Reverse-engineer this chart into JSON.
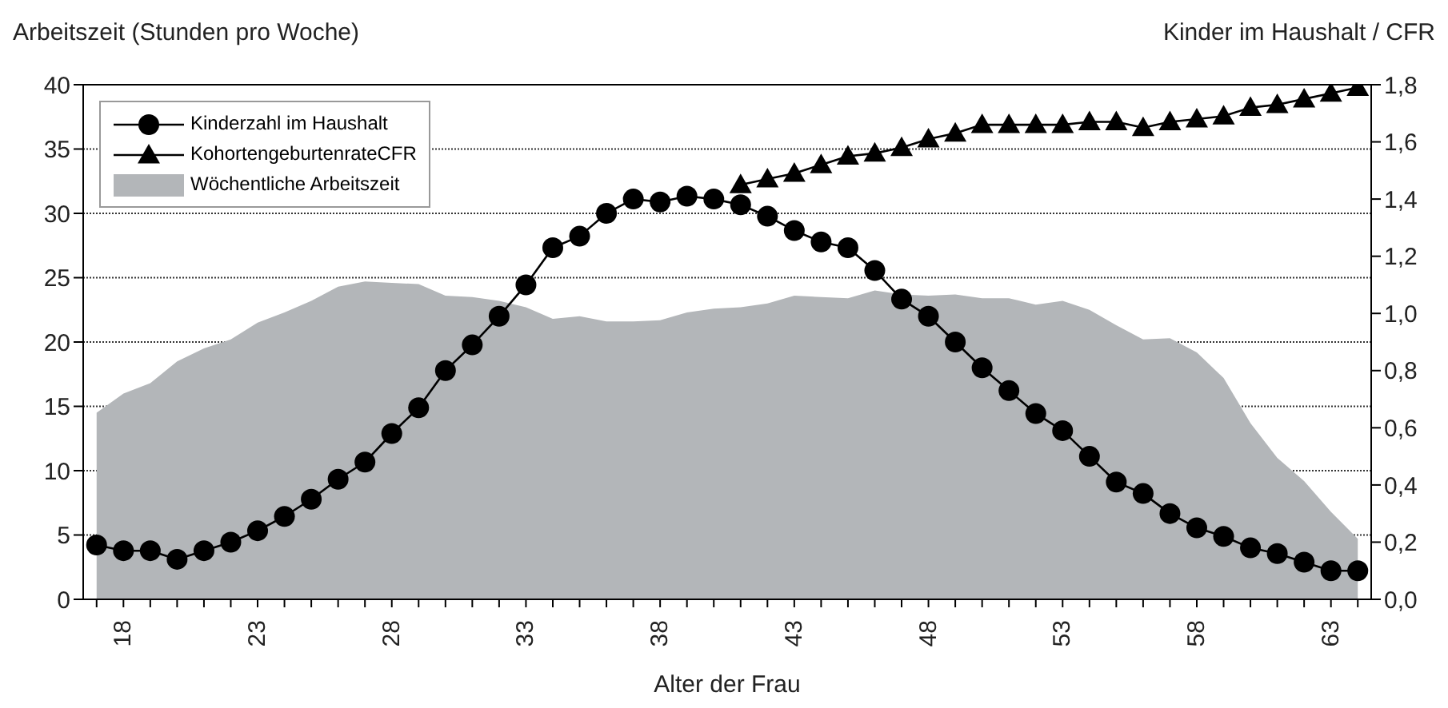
{
  "chart_data": {
    "type": "line",
    "xlabel": "Alter der Frau",
    "ylabel": "Arbeitszeit (Stunden pro Woche)",
    "y2label": "Kinder im Haushalt / CFR",
    "x": [
      17,
      18,
      19,
      20,
      21,
      22,
      23,
      24,
      25,
      26,
      27,
      28,
      29,
      30,
      31,
      32,
      33,
      34,
      35,
      36,
      37,
      38,
      39,
      40,
      41,
      42,
      43,
      44,
      45,
      46,
      47,
      48,
      49,
      50,
      51,
      52,
      53,
      54,
      55,
      56,
      57,
      58,
      59,
      60,
      61,
      62,
      63,
      64
    ],
    "series": [
      {
        "name": "Kinderzahl im Haushalt",
        "axis": "y2",
        "marker": "circle",
        "color": "#000000",
        "values": [
          0.19,
          0.17,
          0.17,
          0.14,
          0.17,
          0.2,
          0.24,
          0.29,
          0.35,
          0.42,
          0.48,
          0.58,
          0.67,
          0.8,
          0.89,
          0.99,
          1.1,
          1.23,
          1.27,
          1.35,
          1.4,
          1.39,
          1.41,
          1.4,
          1.38,
          1.34,
          1.29,
          1.25,
          1.23,
          1.15,
          1.05,
          0.99,
          0.9,
          0.81,
          0.73,
          0.65,
          0.59,
          0.5,
          0.41,
          0.37,
          0.3,
          0.25,
          0.22,
          0.18,
          0.16,
          0.13,
          0.1,
          0.1
        ]
      },
      {
        "name": "KohortengeburtenrateCFR",
        "axis": "y2",
        "marker": "triangle",
        "color": "#000000",
        "values": [
          null,
          null,
          null,
          null,
          null,
          null,
          null,
          null,
          null,
          null,
          null,
          null,
          null,
          null,
          null,
          null,
          null,
          null,
          null,
          null,
          null,
          null,
          null,
          null,
          1.45,
          1.47,
          1.49,
          1.52,
          1.55,
          1.56,
          1.58,
          1.61,
          1.63,
          1.66,
          1.66,
          1.66,
          1.66,
          1.67,
          1.67,
          1.65,
          1.67,
          1.68,
          1.69,
          1.72,
          1.73,
          1.75,
          1.77,
          1.79
        ]
      },
      {
        "name": "Wöchentliche Arbeitszeit",
        "type": "area",
        "color": "#b3b6b9",
        "values": [
          14.5,
          16,
          16.8,
          18.5,
          19.5,
          20.2,
          21.5,
          22.3,
          23.2,
          24.3,
          24.7,
          24.6,
          24.5,
          23.6,
          23.5,
          23.2,
          22.7,
          21.8,
          22,
          21.6,
          21.6,
          21.7,
          22.3,
          22.6,
          22.7,
          23,
          23.6,
          23.5,
          23.4,
          24,
          23.7,
          23.6,
          23.7,
          23.4,
          23.4,
          22.9,
          23.2,
          22.5,
          21.3,
          20.2,
          20.3,
          19.2,
          17.2,
          13.7,
          11,
          9.2,
          6.8,
          4.7
        ]
      }
    ],
    "xlim": [
      16.5,
      64.5
    ],
    "xticks": [
      {
        "value": 17,
        "label": null
      },
      18,
      {
        "value": 19,
        "label": null
      },
      {
        "value": 20,
        "label": null
      },
      {
        "value": 21,
        "label": null
      },
      {
        "value": 22,
        "label": null
      },
      23,
      {
        "value": 24,
        "label": null
      },
      {
        "value": 25,
        "label": null
      },
      {
        "value": 26,
        "label": null
      },
      {
        "value": 27,
        "label": null
      },
      28,
      {
        "value": 29,
        "label": null
      },
      {
        "value": 30,
        "label": null
      },
      {
        "value": 31,
        "label": null
      },
      {
        "value": 32,
        "label": null
      },
      33,
      {
        "value": 34,
        "label": null
      },
      {
        "value": 35,
        "label": null
      },
      {
        "value": 36,
        "label": null
      },
      {
        "value": 37,
        "label": null
      },
      38,
      {
        "value": 39,
        "label": null
      },
      {
        "value": 40,
        "label": null
      },
      {
        "value": 41,
        "label": null
      },
      {
        "value": 42,
        "label": null
      },
      43,
      {
        "value": 44,
        "label": null
      },
      {
        "value": 45,
        "label": null
      },
      {
        "value": 46,
        "label": null
      },
      {
        "value": 47,
        "label": null
      },
      48,
      {
        "value": 49,
        "label": null
      },
      {
        "value": 50,
        "label": null
      },
      {
        "value": 51,
        "label": null
      },
      {
        "value": 52,
        "label": null
      },
      53,
      {
        "value": 54,
        "label": null
      },
      {
        "value": 55,
        "label": null
      },
      {
        "value": 56,
        "label": null
      },
      {
        "value": 57,
        "label": null
      },
      58,
      {
        "value": 59,
        "label": null
      },
      {
        "value": 60,
        "label": null
      },
      {
        "value": 61,
        "label": null
      },
      {
        "value": 62,
        "label": null
      },
      63,
      {
        "value": 64,
        "label": null
      }
    ],
    "ylim": [
      0,
      40
    ],
    "yticks": [
      0,
      5,
      10,
      15,
      20,
      25,
      30,
      35,
      40
    ],
    "y2lim": [
      0,
      1.8
    ],
    "y2ticks": [
      {
        "value": 0,
        "label": "0,0"
      },
      {
        "value": 0.2,
        "label": "0,2"
      },
      {
        "value": 0.4,
        "label": "0,4"
      },
      {
        "value": 0.6,
        "label": "0,6"
      },
      {
        "value": 0.8,
        "label": "0,8"
      },
      {
        "value": 1,
        "label": "1,0"
      },
      {
        "value": 1.2,
        "label": "1,2"
      },
      {
        "value": 1.4,
        "label": "1,4"
      },
      {
        "value": 1.6,
        "label": "1,6"
      },
      {
        "value": 1.8,
        "label": "1,8"
      }
    ],
    "grid": "y",
    "legend": "top left"
  }
}
